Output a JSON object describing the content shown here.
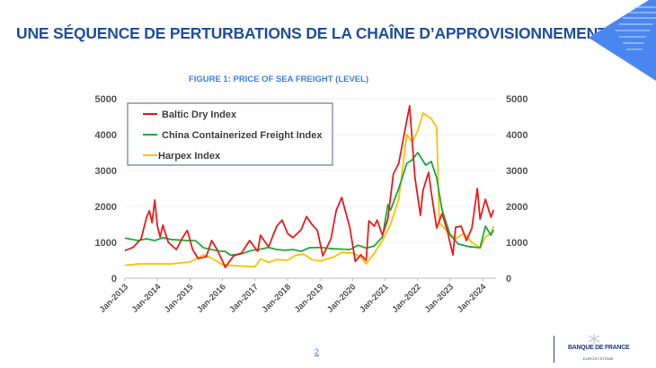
{
  "page": {
    "title": "UNE SÉQUENCE DE PERTURBATIONS DE LA CHAÎNE D’APPROVISIONNEMENT",
    "page_number": "2",
    "accent": "#1f4f9e"
  },
  "logo": {
    "name": "BANQUE DE FRANCE",
    "sub": "EUROSYSTÈME"
  },
  "chart_data": {
    "type": "line",
    "title": "FIGURE 1: PRICE OF SEA FREIGHT (LEVEL)",
    "xlabel": "",
    "ylabel": "",
    "ylim": [
      0,
      5000
    ],
    "y2lim": [
      0,
      5000
    ],
    "yticks": [
      "0",
      "1000",
      "2000",
      "3000",
      "4000",
      "5000"
    ],
    "xticks": [
      "Jan-2013",
      "Jan-2014",
      "Jan-2015",
      "Jan-2016",
      "Jan-2017",
      "Jan-2018",
      "Jan-2019",
      "Jan-2020",
      "Jan-2021",
      "Jan-2022",
      "Jan-2023",
      "Jan-2024"
    ],
    "grid": true,
    "legend_position": "top-left",
    "series": [
      {
        "name": "Baltic  Dry Index",
        "color": "#ee1c1c",
        "points": [
          [
            "2013-01",
            770
          ],
          [
            "2013-04",
            860
          ],
          [
            "2013-07",
            1100
          ],
          [
            "2013-09",
            1700
          ],
          [
            "2013-10",
            1880
          ],
          [
            "2013-11",
            1550
          ],
          [
            "2013-12",
            2180
          ],
          [
            "2014-01",
            1450
          ],
          [
            "2014-02",
            1150
          ],
          [
            "2014-03",
            1480
          ],
          [
            "2014-05",
            1000
          ],
          [
            "2014-08",
            800
          ],
          [
            "2014-10",
            1100
          ],
          [
            "2014-12",
            1330
          ],
          [
            "2015-02",
            800
          ],
          [
            "2015-04",
            550
          ],
          [
            "2015-07",
            600
          ],
          [
            "2015-09",
            1050
          ],
          [
            "2015-11",
            800
          ],
          [
            "2016-01",
            480
          ],
          [
            "2016-02",
            300
          ],
          [
            "2016-05",
            620
          ],
          [
            "2016-08",
            700
          ],
          [
            "2016-11",
            1050
          ],
          [
            "2017-02",
            750
          ],
          [
            "2017-03",
            1200
          ],
          [
            "2017-06",
            870
          ],
          [
            "2017-09",
            1450
          ],
          [
            "2017-11",
            1620
          ],
          [
            "2018-01",
            1250
          ],
          [
            "2018-03",
            1130
          ],
          [
            "2018-06",
            1350
          ],
          [
            "2018-08",
            1720
          ],
          [
            "2018-10",
            1500
          ],
          [
            "2018-12",
            1330
          ],
          [
            "2019-02",
            620
          ],
          [
            "2019-05",
            1100
          ],
          [
            "2019-07",
            1900
          ],
          [
            "2019-09",
            2250
          ],
          [
            "2019-12",
            1400
          ],
          [
            "2020-02",
            470
          ],
          [
            "2020-04",
            650
          ],
          [
            "2020-06",
            500
          ],
          [
            "2020-07",
            1600
          ],
          [
            "2020-09",
            1450
          ],
          [
            "2020-10",
            1620
          ],
          [
            "2020-12",
            1200
          ],
          [
            "2021-02",
            1650
          ],
          [
            "2021-04",
            2900
          ],
          [
            "2021-06",
            3200
          ],
          [
            "2021-08",
            4000
          ],
          [
            "2021-10",
            4800
          ],
          [
            "2021-12",
            2800
          ],
          [
            "2022-02",
            1750
          ],
          [
            "2022-03",
            2450
          ],
          [
            "2022-05",
            2950
          ],
          [
            "2022-06",
            2400
          ],
          [
            "2022-08",
            1400
          ],
          [
            "2022-10",
            1800
          ],
          [
            "2022-12",
            1300
          ],
          [
            "2023-02",
            650
          ],
          [
            "2023-03",
            1420
          ],
          [
            "2023-05",
            1450
          ],
          [
            "2023-07",
            1050
          ],
          [
            "2023-09",
            1400
          ],
          [
            "2023-11",
            2500
          ],
          [
            "2023-12",
            1650
          ],
          [
            "2024-02",
            2200
          ],
          [
            "2024-04",
            1700
          ],
          [
            "2024-05",
            1900
          ]
        ]
      },
      {
        "name": "China Containerized Freight Index",
        "color": "#1aaa3c",
        "points": [
          [
            "2013-01",
            1120
          ],
          [
            "2013-06",
            1050
          ],
          [
            "2013-09",
            1100
          ],
          [
            "2013-12",
            1050
          ],
          [
            "2014-03",
            1130
          ],
          [
            "2014-06",
            1080
          ],
          [
            "2014-12",
            1050
          ],
          [
            "2015-03",
            1050
          ],
          [
            "2015-06",
            850
          ],
          [
            "2015-09",
            800
          ],
          [
            "2015-12",
            750
          ],
          [
            "2016-02",
            750
          ],
          [
            "2016-04",
            640
          ],
          [
            "2016-08",
            680
          ],
          [
            "2016-12",
            780
          ],
          [
            "2017-03",
            810
          ],
          [
            "2017-06",
            860
          ],
          [
            "2017-09",
            800
          ],
          [
            "2017-12",
            780
          ],
          [
            "2018-03",
            800
          ],
          [
            "2018-06",
            750
          ],
          [
            "2018-09",
            850
          ],
          [
            "2019-01",
            860
          ],
          [
            "2019-06",
            820
          ],
          [
            "2019-12",
            800
          ],
          [
            "2020-03",
            920
          ],
          [
            "2020-06",
            840
          ],
          [
            "2020-09",
            900
          ],
          [
            "2020-12",
            1150
          ],
          [
            "2021-02",
            2050
          ],
          [
            "2021-03",
            1900
          ],
          [
            "2021-06",
            2500
          ],
          [
            "2021-09",
            3200
          ],
          [
            "2021-11",
            3300
          ],
          [
            "2022-01",
            3500
          ],
          [
            "2022-04",
            3150
          ],
          [
            "2022-06",
            3250
          ],
          [
            "2022-08",
            2800
          ],
          [
            "2022-10",
            1900
          ],
          [
            "2023-01",
            1200
          ],
          [
            "2023-04",
            950
          ],
          [
            "2023-08",
            880
          ],
          [
            "2023-12",
            850
          ],
          [
            "2024-02",
            1450
          ],
          [
            "2024-04",
            1200
          ],
          [
            "2024-05",
            1350
          ]
        ]
      },
      {
        "name": "Harpex Index",
        "color": "#ffc000",
        "points": [
          [
            "2013-01",
            360
          ],
          [
            "2013-06",
            400
          ],
          [
            "2014-06",
            400
          ],
          [
            "2015-01",
            450
          ],
          [
            "2015-06",
            650
          ],
          [
            "2015-09",
            560
          ],
          [
            "2016-01",
            380
          ],
          [
            "2016-06",
            350
          ],
          [
            "2017-01",
            320
          ],
          [
            "2017-03",
            540
          ],
          [
            "2017-06",
            440
          ],
          [
            "2017-09",
            520
          ],
          [
            "2018-01",
            500
          ],
          [
            "2018-04",
            640
          ],
          [
            "2018-07",
            670
          ],
          [
            "2018-10",
            520
          ],
          [
            "2019-01",
            480
          ],
          [
            "2019-06",
            590
          ],
          [
            "2019-09",
            720
          ],
          [
            "2020-01",
            700
          ],
          [
            "2020-04",
            600
          ],
          [
            "2020-06",
            400
          ],
          [
            "2020-09",
            700
          ],
          [
            "2020-12",
            1050
          ],
          [
            "2021-03",
            1500
          ],
          [
            "2021-06",
            2200
          ],
          [
            "2021-09",
            4000
          ],
          [
            "2021-11",
            3800
          ],
          [
            "2022-01",
            4100
          ],
          [
            "2022-03",
            4600
          ],
          [
            "2022-06",
            4450
          ],
          [
            "2022-08",
            4200
          ],
          [
            "2022-09",
            1550
          ],
          [
            "2022-12",
            1300
          ],
          [
            "2023-03",
            1100
          ],
          [
            "2023-06",
            1250
          ],
          [
            "2023-09",
            1000
          ],
          [
            "2023-12",
            850
          ],
          [
            "2024-02",
            1150
          ],
          [
            "2024-04",
            1250
          ],
          [
            "2024-05",
            1450
          ]
        ]
      }
    ]
  }
}
